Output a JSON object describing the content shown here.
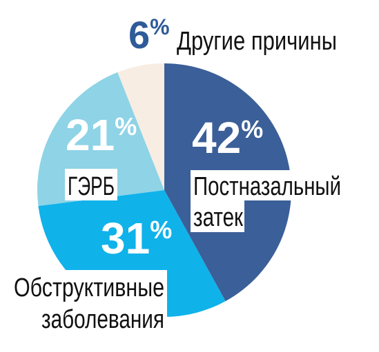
{
  "chart_data": {
    "type": "pie",
    "slices": [
      {
        "label": "Постназальный затек",
        "label_lines": [
          "Постназальный",
          "затек"
        ],
        "value": 42,
        "value_text": "42",
        "color": "#3b5f98"
      },
      {
        "label": "Обструктивные заболевания",
        "label_lines": [
          "Обструктивные",
          "заболевания"
        ],
        "value": 31,
        "value_text": "31",
        "color": "#10b2ea"
      },
      {
        "label": "ГЭРБ",
        "label_lines": [
          "ГЭРБ"
        ],
        "value": 21,
        "value_text": "21",
        "color": "#8ed3e6"
      },
      {
        "label": "Другие причины",
        "label_lines": [
          "Другие причины"
        ],
        "value": 6,
        "value_text": "6",
        "color": "#f7ede3"
      }
    ],
    "percent_sign": "%"
  }
}
